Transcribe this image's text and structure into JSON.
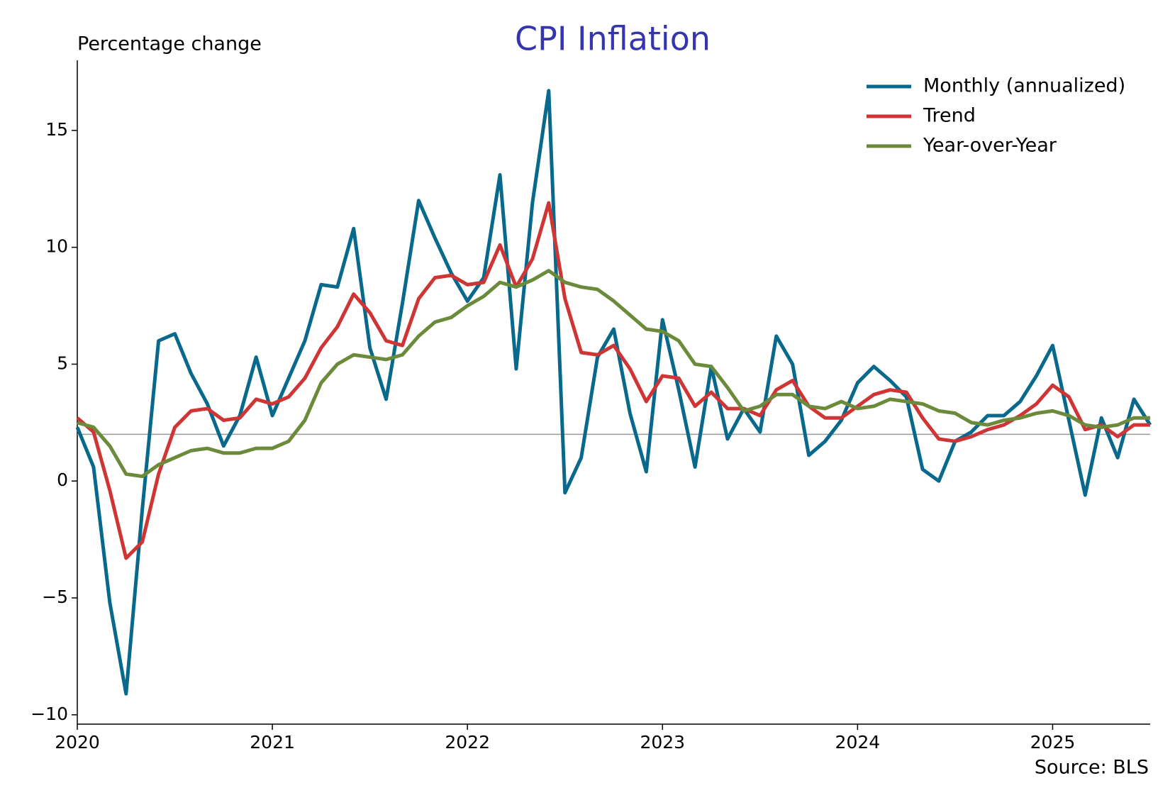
{
  "chart_data": {
    "type": "line",
    "title": "CPI Inflation",
    "ylabel": "Percentage change",
    "source": "Source: BLS",
    "x": [
      2020,
      2020.0833,
      2020.1667,
      2020.25,
      2020.3333,
      2020.4167,
      2020.5,
      2020.5833,
      2020.6667,
      2020.75,
      2020.8333,
      2020.9167,
      2021,
      2021.0833,
      2021.1667,
      2021.25,
      2021.3333,
      2021.4167,
      2021.5,
      2021.5833,
      2021.6667,
      2021.75,
      2021.8333,
      2021.9167,
      2022,
      2022.0833,
      2022.1667,
      2022.25,
      2022.3333,
      2022.4167,
      2022.5,
      2022.5833,
      2022.6667,
      2022.75,
      2022.8333,
      2022.9167,
      2023,
      2023.0833,
      2023.1667,
      2023.25,
      2023.3333,
      2023.4167,
      2023.5,
      2023.5833,
      2023.6667,
      2023.75,
      2023.8333,
      2023.9167,
      2024,
      2024.0833,
      2024.1667,
      2024.25,
      2024.3333,
      2024.4167,
      2024.5,
      2024.5833,
      2024.6667,
      2024.75,
      2024.8333,
      2024.9167,
      2025,
      2025.0833,
      2025.1667,
      2025.25,
      2025.3333,
      2025.4167,
      2025.5
    ],
    "series": [
      {
        "name": "Monthly (annualized)",
        "color": "#08698c",
        "values": [
          2.3,
          0.6,
          -5.2,
          -9.1,
          -1.2,
          6.0,
          6.3,
          4.6,
          3.3,
          1.5,
          2.8,
          5.3,
          2.8,
          4.4,
          6.0,
          8.4,
          8.3,
          10.8,
          5.7,
          3.5,
          7.6,
          12.0,
          10.4,
          8.9,
          7.7,
          8.7,
          13.1,
          4.8,
          11.9,
          16.7,
          -0.5,
          1.0,
          5.3,
          6.5,
          2.9,
          0.4,
          6.9,
          3.9,
          0.6,
          4.9,
          1.8,
          3.1,
          2.1,
          6.2,
          5.0,
          1.1,
          1.7,
          2.6,
          4.2,
          4.9,
          4.3,
          3.6,
          0.5,
          0.0,
          1.7,
          2.1,
          2.8,
          2.8,
          3.4,
          4.5,
          5.8,
          2.6,
          -0.6,
          2.7,
          1.0,
          3.5,
          2.4
        ]
      },
      {
        "name": "Trend",
        "color": "#d03535",
        "values": [
          2.7,
          2.1,
          -0.4,
          -3.3,
          -2.6,
          0.3,
          2.3,
          3.0,
          3.1,
          2.6,
          2.7,
          3.5,
          3.3,
          3.6,
          4.4,
          5.7,
          6.6,
          8.0,
          7.2,
          6.0,
          5.8,
          7.8,
          8.7,
          8.8,
          8.4,
          8.5,
          10.1,
          8.3,
          9.5,
          11.9,
          7.8,
          5.5,
          5.4,
          5.8,
          4.8,
          3.4,
          4.5,
          4.4,
          3.2,
          3.8,
          3.1,
          3.1,
          2.8,
          3.9,
          4.3,
          3.2,
          2.7,
          2.7,
          3.2,
          3.7,
          3.9,
          3.8,
          2.7,
          1.8,
          1.7,
          1.9,
          2.2,
          2.4,
          2.8,
          3.3,
          4.1,
          3.6,
          2.2,
          2.4,
          1.9,
          2.4,
          2.4
        ]
      },
      {
        "name": "Year-over-Year",
        "color": "#6b8a3a",
        "values": [
          2.5,
          2.3,
          1.5,
          0.3,
          0.2,
          0.7,
          1.0,
          1.3,
          1.4,
          1.2,
          1.2,
          1.4,
          1.4,
          1.7,
          2.6,
          4.2,
          5.0,
          5.4,
          5.3,
          5.2,
          5.4,
          6.2,
          6.8,
          7.0,
          7.5,
          7.9,
          8.5,
          8.3,
          8.6,
          9.0,
          8.5,
          8.3,
          8.2,
          7.7,
          7.1,
          6.5,
          6.4,
          6.0,
          5.0,
          4.9,
          4.0,
          3.0,
          3.2,
          3.7,
          3.7,
          3.2,
          3.1,
          3.4,
          3.1,
          3.2,
          3.5,
          3.4,
          3.3,
          3.0,
          2.9,
          2.5,
          2.4,
          2.6,
          2.7,
          2.9,
          3.0,
          2.8,
          2.4,
          2.3,
          2.4,
          2.7,
          2.7
        ]
      }
    ],
    "xlim": [
      2020,
      2025.5
    ],
    "xticks": [
      2020,
      2021,
      2022,
      2023,
      2024,
      2025
    ],
    "ylim": [
      -10.4,
      18
    ],
    "yticks": [
      {
        "value": -10,
        "label": "−10"
      },
      {
        "value": -5,
        "label": "−5"
      },
      0,
      5,
      10,
      15
    ],
    "hline": 2,
    "hline_color": "#999999",
    "grid": false,
    "legend": "upper right"
  }
}
